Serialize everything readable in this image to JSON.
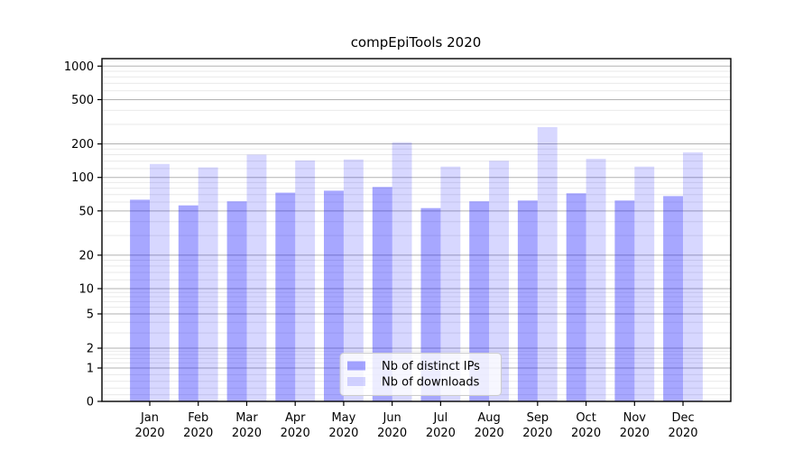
{
  "chart_data": {
    "type": "bar",
    "title": "compEpiTools 2020",
    "x_labels_line1": [
      "Jan",
      "Feb",
      "Mar",
      "Apr",
      "May",
      "Jun",
      "Jul",
      "Aug",
      "Sep",
      "Oct",
      "Nov",
      "Dec"
    ],
    "x_labels_line2": "2020",
    "series": [
      {
        "name": "Nb of distinct IPs",
        "values": [
          63,
          56,
          61,
          73,
          76,
          82,
          53,
          61,
          62,
          72,
          62,
          68
        ],
        "color": "rgba(0,0,255,0.345)"
      },
      {
        "name": "Nb of downloads",
        "values": [
          132,
          123,
          160,
          142,
          145,
          207,
          125,
          141,
          283,
          147,
          125,
          168
        ],
        "color": "rgba(0,0,255,0.155)"
      }
    ],
    "y_axis": {
      "scale": "symlog",
      "major_ticks": [
        0,
        1,
        2,
        5,
        10,
        20,
        50,
        100,
        200,
        500,
        1000
      ],
      "minor_ticks": [
        0.2,
        0.4,
        0.6,
        0.8,
        1.2,
        1.4,
        1.6,
        1.8,
        3,
        4,
        6,
        7,
        8,
        9,
        12,
        14,
        16,
        18,
        30,
        40,
        60,
        70,
        80,
        90,
        120,
        140,
        160,
        180,
        300,
        400,
        600,
        700,
        800,
        900
      ],
      "range_top": 1000
    },
    "grid": {
      "on": true,
      "major_color": "#b2b2b2",
      "minor_color": "#e9e9e9"
    },
    "legend": {
      "position": "lower center"
    },
    "axis_color": "#000000",
    "background": "#ffffff"
  }
}
